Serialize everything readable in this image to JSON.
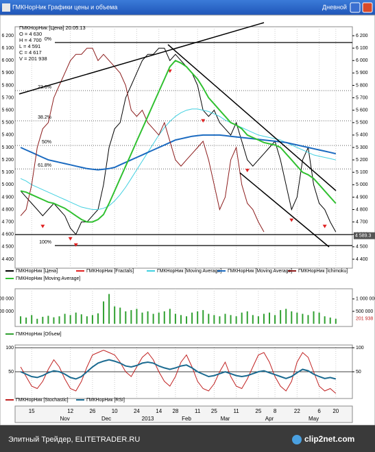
{
  "window": {
    "title": "ГМКНорНик Графики цены и объема",
    "period": "Дневной"
  },
  "footer": {
    "left": "Элитный Трейдер, ELITETRADER.RU",
    "right": "clip2net.com"
  },
  "chart_data": [
    {
      "type": "line",
      "info": [
        "ГМКНорНик [Цена] 20.05.13",
        "O = 4 630",
        "H = 4 700",
        "L = 4 591",
        "C = 4 617",
        "V = 201 938"
      ],
      "xlim": [
        -1,
        60
      ],
      "ylim": [
        4350,
        6250
      ],
      "yticks": [
        {
          "value": 4400,
          "label": "4 400"
        },
        {
          "value": 4500,
          "label": "4 500"
        },
        {
          "value": 4600,
          "label": "4 600"
        },
        {
          "value": 4700,
          "label": "4 700"
        },
        {
          "value": 4800,
          "label": "4 800"
        },
        {
          "value": 4900,
          "label": "4 900"
        },
        {
          "value": 5000,
          "label": "5 000"
        },
        {
          "value": 5100,
          "label": "5 100"
        },
        {
          "value": 5200,
          "label": "5 200"
        },
        {
          "value": 5300,
          "label": "5 300"
        },
        {
          "value": 5400,
          "label": "5 400"
        },
        {
          "value": 5500,
          "label": "5 500"
        },
        {
          "value": 5600,
          "label": "5 600"
        },
        {
          "value": 5700,
          "label": "5 700"
        },
        {
          "value": 5800,
          "label": "5 800"
        },
        {
          "value": 5900,
          "label": "5 900"
        },
        {
          "value": 6000,
          "label": "6 000"
        },
        {
          "value": 6100,
          "label": "6 100"
        },
        {
          "value": 6200,
          "label": "6 200"
        }
      ],
      "fib_levels": [
        {
          "value": 6145,
          "label": "0%"
        },
        {
          "value": 5758,
          "label": "23.6%"
        },
        {
          "value": 5515,
          "label": "38.2%"
        },
        {
          "value": 5316,
          "label": "50%"
        },
        {
          "value": 5128,
          "label": "61.8%"
        },
        {
          "value": 4510,
          "label": "100%"
        }
      ],
      "current_price": {
        "value": 4589.3,
        "label": "4 589.3"
      },
      "series": [
        {
          "name": "ГМКНорНик [Цена]",
          "color": "#000000",
          "values": [
            4950,
            4900,
            4850,
            4800,
            4750,
            4800,
            4850,
            4800,
            4750,
            4650,
            4600,
            4700,
            4700,
            4750,
            4800,
            5000,
            5300,
            5450,
            5500,
            5700,
            5800,
            5900,
            6000,
            6050,
            6050,
            6100,
            6100,
            6000,
            6050,
            6000,
            5950,
            5900,
            5800,
            5600,
            5550,
            5600,
            5500,
            5450,
            5400,
            5500,
            5350,
            5200,
            5150,
            5200,
            5250,
            5300,
            5350,
            5200,
            5000,
            4800,
            4900,
            5200,
            5300,
            5000,
            4850,
            4800,
            4700,
            4620
          ]
        },
        {
          "name": "ГМКНорНик [Fractals]",
          "color": "#e02020",
          "style": "marker",
          "values": [
            null,
            null,
            null,
            null,
            4700,
            null,
            null,
            null,
            null,
            4600,
            4550,
            null,
            null,
            null,
            null,
            null,
            null,
            null,
            null,
            null,
            null,
            null,
            null,
            null,
            null,
            null,
            null,
            5950,
            null,
            null,
            null,
            null,
            null,
            5550,
            null,
            null,
            null,
            null,
            null,
            null,
            null,
            5150,
            null,
            null,
            null,
            null,
            null,
            null,
            null,
            4750,
            null,
            null,
            null,
            null,
            null,
            4700,
            null,
            null
          ]
        },
        {
          "name": "ГМКНорНик [Moving Average]",
          "color": "#40d0e0",
          "values": [
            5050,
            5030,
            5000,
            4980,
            4960,
            4940,
            4920,
            4900,
            4880,
            4860,
            4840,
            4820,
            4810,
            4800,
            4800,
            4810,
            4830,
            4870,
            4920,
            4980,
            5050,
            5120,
            5190,
            5260,
            5330,
            5400,
            5460,
            5510,
            5550,
            5580,
            5600,
            5610,
            5610,
            5600,
            5590,
            5570,
            5550,
            5520,
            5500,
            5480,
            5460,
            5440,
            5420,
            5400,
            5390,
            5380,
            5370,
            5360,
            5340,
            5320,
            5300,
            5280,
            5260,
            5240,
            5230,
            5220,
            5210,
            5200
          ]
        },
        {
          "name": "ГМКНорНик [Moving Average]",
          "color": "#1a6ac0",
          "values": [
            5300,
            5280,
            5260,
            5240,
            5220,
            5200,
            5190,
            5180,
            5170,
            5160,
            5150,
            5140,
            5130,
            5125,
            5120,
            5125,
            5130,
            5140,
            5160,
            5180,
            5200,
            5220,
            5240,
            5260,
            5280,
            5300,
            5320,
            5340,
            5360,
            5370,
            5380,
            5390,
            5395,
            5400,
            5400,
            5400,
            5400,
            5395,
            5390,
            5385,
            5380,
            5375,
            5370,
            5365,
            5360,
            5355,
            5350,
            5345,
            5340,
            5330,
            5320,
            5310,
            5300,
            5290,
            5280,
            5270,
            5260,
            5250
          ]
        },
        {
          "name": "ГМКНорНик [Ichimoku]",
          "color": "#8b1a1a",
          "values": [
            4750,
            4800,
            5000,
            5300,
            5450,
            5500,
            5700,
            5800,
            5900,
            6000,
            6050,
            6050,
            6100,
            6100,
            6000,
            6050,
            6000,
            5950,
            5900,
            5800,
            5600,
            5550,
            5600,
            5500,
            5450,
            5400,
            5500,
            5350,
            5200,
            5150,
            5200,
            5250,
            5300,
            5350,
            5200,
            5000,
            4800,
            4900,
            5200,
            5300,
            5000,
            4850,
            4800,
            4700,
            4620,
            null,
            null,
            null,
            null,
            null,
            null,
            null,
            null,
            null,
            null,
            null,
            null,
            null
          ]
        },
        {
          "name": "ГМКНорНик [Moving Average]",
          "color": "#30c030",
          "values": [
            4950,
            4940,
            4920,
            4900,
            4880,
            4860,
            4850,
            4830,
            4810,
            4780,
            4750,
            4720,
            4700,
            4700,
            4720,
            4760,
            4850,
            4950,
            5050,
            5150,
            5250,
            5350,
            5450,
            5550,
            5650,
            5750,
            5850,
            5950,
            6000,
            5980,
            5950,
            5900,
            5850,
            5780,
            5700,
            5650,
            5600,
            5550,
            5500,
            5480,
            5450,
            5400,
            5380,
            5360,
            5340,
            5330,
            5320,
            5300,
            5250,
            5200,
            5150,
            5100,
            5080,
            5050,
            5000,
            4950,
            4900,
            4850
          ]
        }
      ]
    },
    {
      "type": "bar",
      "xlim": [
        -1,
        60
      ],
      "ylim": [
        0,
        1300000
      ],
      "yticks": [
        {
          "value": 500000,
          "label": "500 000"
        },
        {
          "value": 1000000,
          "label": "1 000 000"
        }
      ],
      "last_value_label": "201 938",
      "series": [
        {
          "name": "ГМКНорНик [Объем]",
          "color": "#30a030",
          "values": [
            300000,
            250000,
            350000,
            200000,
            280000,
            320000,
            260000,
            300000,
            400000,
            350000,
            450000,
            380000,
            300000,
            350000,
            420000,
            900000,
            1200000,
            700000,
            650000,
            500000,
            550000,
            600000,
            450000,
            500000,
            400000,
            450000,
            500000,
            600000,
            400000,
            350000,
            300000,
            450000,
            500000,
            550000,
            400000,
            350000,
            300000,
            400000,
            350000,
            300000,
            450000,
            500000,
            350000,
            300000,
            400000,
            450000,
            350000,
            550000,
            600000,
            500000,
            450000,
            400000,
            350000,
            500000,
            450000,
            300000,
            250000,
            201938
          ]
        }
      ]
    },
    {
      "type": "line",
      "xlim": [
        -1,
        60
      ],
      "ylim": [
        0,
        100
      ],
      "yticks": [
        50,
        100
      ],
      "xticks": [
        {
          "value": 2,
          "label": "15"
        },
        {
          "value": 9,
          "label": "12"
        },
        {
          "value": 13,
          "label": "26"
        },
        {
          "value": 17,
          "label": "10"
        },
        {
          "value": 21,
          "label": "24"
        },
        {
          "value": 25,
          "label": "14"
        },
        {
          "value": 28,
          "label": "28"
        },
        {
          "value": 32,
          "label": "11"
        },
        {
          "value": 35,
          "label": "25"
        },
        {
          "value": 39,
          "label": "11"
        },
        {
          "value": 43,
          "label": "25"
        },
        {
          "value": 46,
          "label": "8"
        },
        {
          "value": 50,
          "label": "22"
        },
        {
          "value": 54,
          "label": "6"
        },
        {
          "value": 57,
          "label": "20"
        }
      ],
      "months": [
        {
          "value": 8,
          "label": "Nov"
        },
        {
          "value": 15.5,
          "label": "Dec"
        },
        {
          "value": 23,
          "label": "2013"
        },
        {
          "value": 30,
          "label": "Feb"
        },
        {
          "value": 37,
          "label": "Mar"
        },
        {
          "value": 45,
          "label": "Apr"
        },
        {
          "value": 53,
          "label": "May"
        }
      ],
      "series": [
        {
          "name": "ГМКНорНик [Stochastic]",
          "color": "#c02020",
          "values": [
            60,
            40,
            20,
            15,
            30,
            55,
            75,
            60,
            35,
            15,
            10,
            30,
            60,
            85,
            90,
            95,
            90,
            85,
            70,
            50,
            40,
            60,
            80,
            90,
            75,
            50,
            30,
            20,
            40,
            70,
            85,
            60,
            30,
            15,
            10,
            25,
            50,
            70,
            40,
            20,
            15,
            35,
            60,
            85,
            90,
            70,
            40,
            20,
            10,
            30,
            70,
            90,
            80,
            50,
            20,
            10,
            15,
            5
          ]
        },
        {
          "name": "ГМКНорНик [RSI]",
          "color": "#1a6a90",
          "values": [
            50,
            45,
            40,
            38,
            42,
            48,
            52,
            50,
            45,
            38,
            35,
            40,
            50,
            60,
            68,
            72,
            75,
            72,
            68,
            62,
            60,
            63,
            68,
            70,
            68,
            62,
            58,
            55,
            58,
            62,
            64,
            58,
            50,
            45,
            40,
            42,
            46,
            50,
            46,
            42,
            40,
            42,
            46,
            50,
            52,
            48,
            44,
            40,
            36,
            40,
            48,
            55,
            52,
            45,
            40,
            36,
            38,
            35
          ]
        }
      ]
    }
  ]
}
